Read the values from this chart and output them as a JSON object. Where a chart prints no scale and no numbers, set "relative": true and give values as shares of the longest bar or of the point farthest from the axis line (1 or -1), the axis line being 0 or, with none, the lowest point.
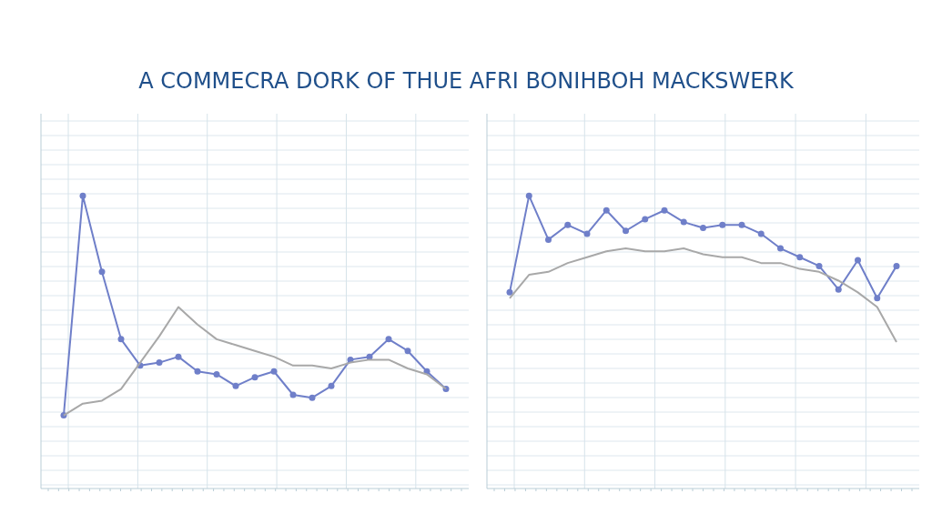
{
  "chart_data": [
    {
      "type": "line",
      "title": "A COMMECRA DORK OF THUE AFRI BONIHBOH MACKSWERK",
      "relative": true,
      "grid": true,
      "line_style": "solid",
      "categories": [
        null,
        null,
        null,
        null,
        null,
        null,
        null,
        null,
        null,
        null,
        null,
        null,
        null,
        null,
        null,
        null,
        null,
        null,
        null,
        null,
        null
      ],
      "series": [
        {
          "color": "#6f7fc9",
          "marker": "circle",
          "values": [
            0.25,
            1,
            0.74,
            0.51,
            0.42,
            0.43,
            0.45,
            0.4,
            0.39,
            0.35,
            0.38,
            0.4,
            0.32,
            0.31,
            0.35,
            0.44,
            0.45,
            0.51,
            0.47,
            0.4,
            0.34
          ]
        },
        {
          "color": "#a8a8a8",
          "marker": "none",
          "values": [
            0.25,
            0.29,
            0.3,
            0.34,
            0.43,
            0.52,
            0.62,
            0.56,
            0.51,
            0.49,
            0.47,
            0.45,
            0.42,
            0.42,
            0.41,
            0.43,
            0.44,
            0.44,
            0.41,
            0.39,
            0.34
          ]
        }
      ]
    },
    {
      "type": "line",
      "relative": true,
      "grid": true,
      "line_style": "solid",
      "categories": [
        null,
        null,
        null,
        null,
        null,
        null,
        null,
        null,
        null,
        null,
        null,
        null,
        null,
        null,
        null,
        null,
        null,
        null,
        null,
        null,
        null
      ],
      "series": [
        {
          "color": "#6f7fc9",
          "marker": "circle",
          "values": [
            0.67,
            1,
            0.85,
            0.9,
            0.87,
            0.95,
            0.88,
            0.92,
            0.95,
            0.91,
            0.89,
            0.9,
            0.9,
            0.87,
            0.82,
            0.79,
            0.76,
            0.68,
            0.78,
            0.65,
            0.76
          ]
        },
        {
          "color": "#a8a8a8",
          "marker": "none",
          "values": [
            0.65,
            0.73,
            0.74,
            0.77,
            0.79,
            0.81,
            0.82,
            0.81,
            0.81,
            0.82,
            0.8,
            0.79,
            0.79,
            0.77,
            0.77,
            0.75,
            0.74,
            0.71,
            0.67,
            0.62,
            0.5
          ]
        }
      ]
    }
  ]
}
